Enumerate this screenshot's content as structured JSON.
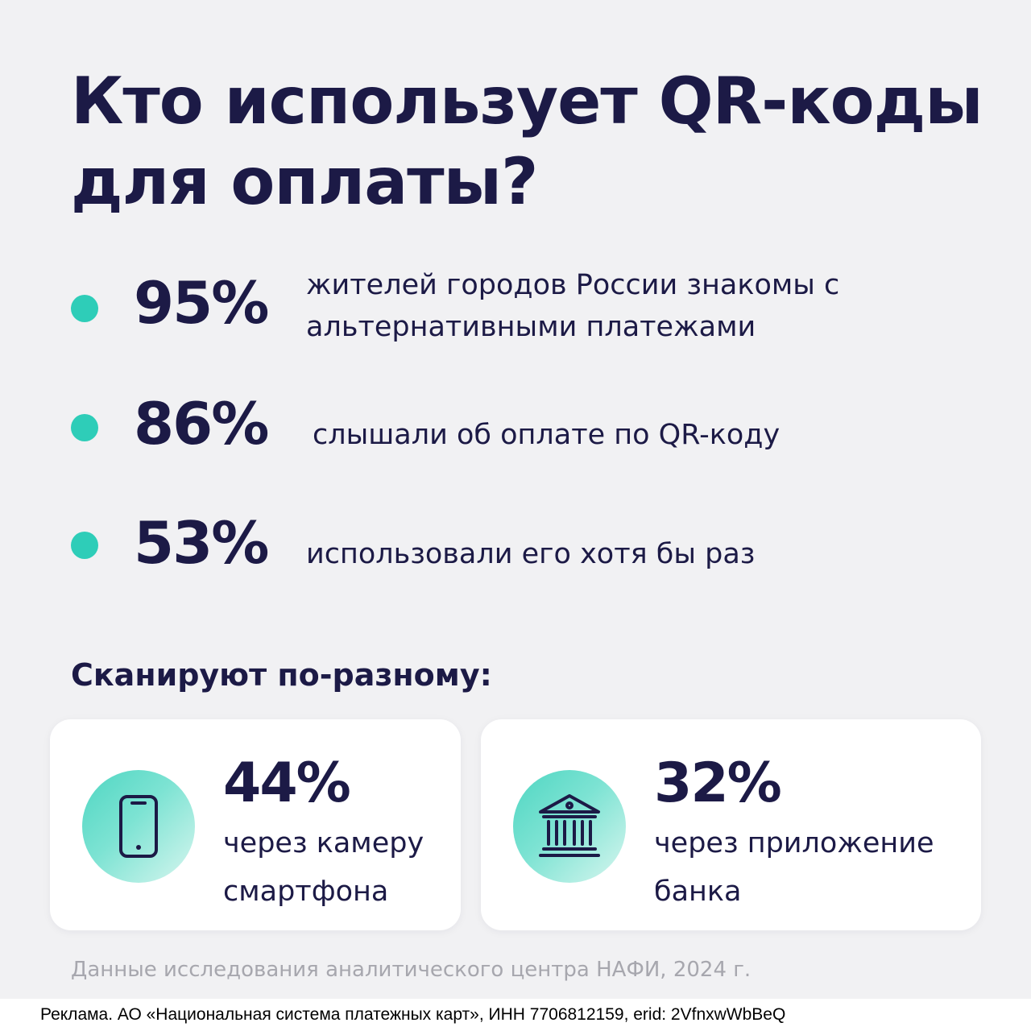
{
  "title": "Кто использует QR-коды для оплаты?",
  "stats": [
    {
      "value": "95%",
      "description": "жителей городов России знакомы с альтернативными платежами"
    },
    {
      "value": "86%",
      "description": "слышали об оплате по QR-коду"
    },
    {
      "value": "53%",
      "description": "использовали его хотя бы раз"
    }
  ],
  "subheading": "Сканируют по-разному:",
  "cards": [
    {
      "icon": "smartphone-icon",
      "value": "44%",
      "description": "через камеру смартфона"
    },
    {
      "icon": "bank-building-icon",
      "value": "32%",
      "description": "через приложение банка"
    }
  ],
  "footnote": "Данные исследования аналитического центра НАФИ, 2024 г.",
  "ad_disclaimer": "Реклама. АО «Национальная система платежных карт», ИНН 7706812159, erid: 2VfnxwWbBeQ",
  "colors": {
    "background": "#f1f1f3",
    "text": "#1c1a46",
    "accent": "#2ecdb8",
    "muted": "#a7a7ae"
  }
}
